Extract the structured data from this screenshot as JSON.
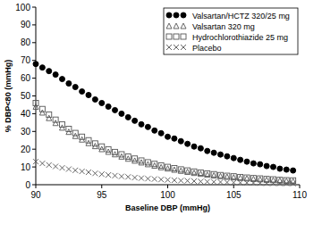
{
  "chart_data": {
    "type": "scatter",
    "x_label": "Baseline DBP (mmHg)",
    "y_label": "% DBP<80 (mmHg)",
    "x": [
      90,
      90.5,
      91,
      91.5,
      92,
      92.5,
      93,
      93.5,
      94,
      94.5,
      95,
      95.5,
      96,
      96.5,
      97,
      97.5,
      98,
      98.5,
      99,
      99.5,
      100,
      100.5,
      101,
      101.5,
      102,
      102.5,
      103,
      103.5,
      104,
      104.5,
      105,
      105.5,
      106,
      106.5,
      107,
      107.5,
      108,
      108.5,
      109,
      109.5
    ],
    "series": [
      {
        "name": "Valsartan/HCTZ 320/25 mg",
        "color": "#000000",
        "marker": "circle",
        "values": [
          68,
          66,
          64,
          62,
          59.5,
          57,
          55,
          52.5,
          50.5,
          48,
          46,
          44,
          42,
          40,
          38,
          36,
          34,
          32.5,
          30.5,
          29,
          27,
          26,
          24.5,
          23,
          21.5,
          20.5,
          19,
          18,
          17,
          16,
          15,
          14,
          13,
          12,
          11.5,
          10.5,
          10,
          9,
          8.5,
          8
        ]
      },
      {
        "name": "Valsartan 320 mg",
        "color": "#555555",
        "marker": "triangle",
        "values": [
          44,
          40.7,
          37.6,
          34.8,
          32.2,
          29.8,
          27.5,
          25.5,
          23.5,
          21.8,
          20.1,
          18.6,
          17.2,
          15.9,
          14.7,
          13.6,
          12.6,
          11.6,
          10.8,
          9.9,
          9.2,
          8.5,
          7.9,
          7.3,
          6.7,
          6.2,
          5.7,
          5.3,
          4.9,
          4.5,
          4.2,
          3.9,
          3.6,
          3.3,
          3.1,
          2.8,
          2.6,
          2.4,
          2.2,
          2.1
        ]
      },
      {
        "name": "Hydrochlorothiazide 25 mg",
        "color": "#555555",
        "marker": "square",
        "values": [
          46,
          42.6,
          39.5,
          36.6,
          33.9,
          31.4,
          29.1,
          27.0,
          25.0,
          23.2,
          21.5,
          19.9,
          18.4,
          17.1,
          15.8,
          14.7,
          13.6,
          12.6,
          11.7,
          10.8,
          10.0,
          9.3,
          8.6,
          8.0,
          7.4,
          6.8,
          6.3,
          5.9,
          5.4,
          5.0,
          4.7,
          4.3,
          4.0,
          3.7,
          3.5,
          3.2,
          3.0,
          2.7,
          2.5,
          2.4
        ]
      },
      {
        "name": "Placebo",
        "color": "#555555",
        "marker": "x",
        "values": [
          13,
          12.0,
          11.1,
          10.3,
          9.5,
          8.8,
          8.1,
          7.5,
          7.0,
          6.4,
          5.9,
          5.5,
          5.1,
          4.7,
          4.4,
          4.0,
          3.7,
          3.4,
          3.2,
          2.9,
          2.7,
          2.5,
          2.3,
          2.2,
          2.0,
          1.8,
          1.7,
          1.6,
          1.5,
          1.3,
          1.2,
          1.1,
          1.1,
          1.0,
          0.9,
          0.8,
          0.8,
          0.7,
          0.7,
          0.6
        ]
      }
    ],
    "xlim": [
      90,
      110
    ],
    "xticks": [
      90,
      95,
      100,
      105,
      110
    ],
    "ylim": [
      0,
      100
    ],
    "yticks": [
      0,
      10,
      20,
      30,
      40,
      50,
      60,
      70,
      80,
      90,
      100
    ],
    "grid": false,
    "legend": "top-right"
  }
}
